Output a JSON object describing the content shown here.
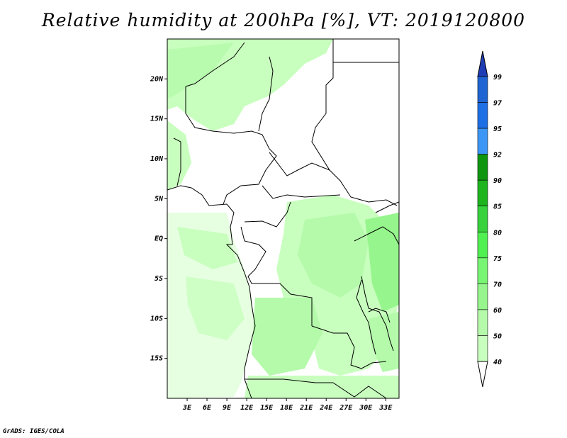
{
  "title": "Relative humidity at 200hPa [%], VT: 2019120800",
  "credit": "GrADS: IGES/COLA",
  "map": {
    "lat_labels": [
      "20N",
      "15N",
      "10N",
      "5N",
      "EQ",
      "5S",
      "10S",
      "15S"
    ],
    "lat_values": [
      20,
      15,
      10,
      5,
      0,
      -5,
      -10,
      -15
    ],
    "lon_labels": [
      "3E",
      "6E",
      "9E",
      "12E",
      "15E",
      "18E",
      "21E",
      "24E",
      "27E",
      "30E",
      "33E"
    ],
    "lon_values": [
      3,
      6,
      9,
      12,
      15,
      18,
      21,
      24,
      27,
      30,
      33
    ],
    "lon_range": [
      0,
      35
    ],
    "lat_range": [
      -20,
      25
    ]
  },
  "legend": {
    "levels": [
      "99",
      "97",
      "95",
      "92",
      "90",
      "85",
      "80",
      "75",
      "70",
      "60",
      "50",
      "40"
    ],
    "colors": [
      "#1e64d2",
      "#1e6ee6",
      "#3c96f5",
      "#0f960f",
      "#1eb41e",
      "#37d23c",
      "#50f050",
      "#78f573",
      "#96f58c",
      "#b4faaa",
      "#c8ffbe",
      "#e6ffe1",
      "#ffffff"
    ],
    "top_arrow_color": "#1e3cb4"
  }
}
